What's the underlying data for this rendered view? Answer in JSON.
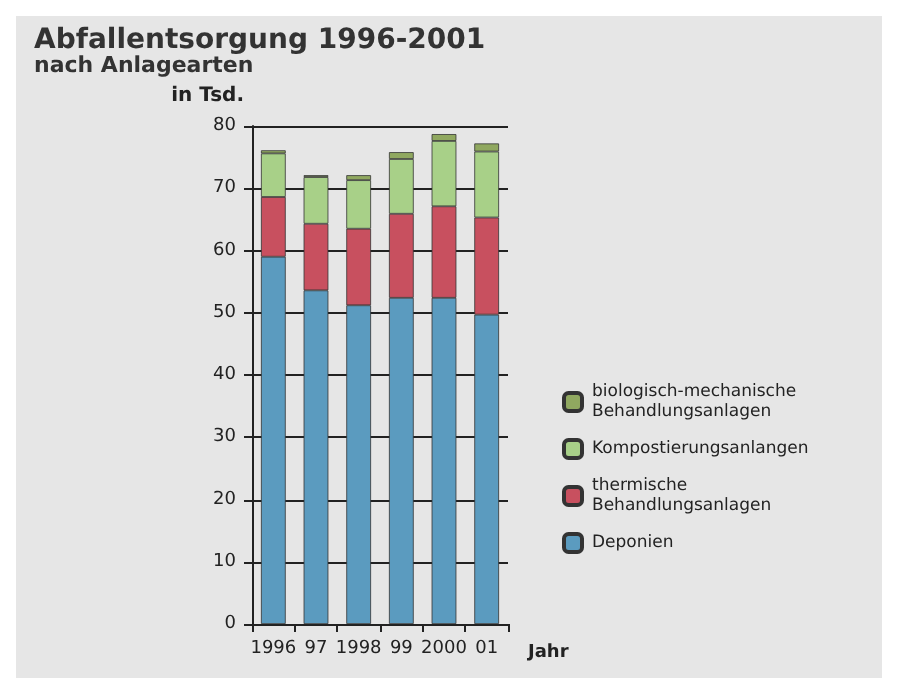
{
  "chart_data": {
    "type": "bar",
    "title": "Abfallentsorgung 1996-2001",
    "subtitle": "nach Anlagearten",
    "ylabel": "in Tsd.",
    "xlabel": "Jahr",
    "categories": [
      "1996",
      "97",
      "1998",
      "99",
      "2000",
      "01"
    ],
    "stacked": true,
    "series": [
      {
        "name": "Deponien",
        "color": "#5b9bbf",
        "values": [
          59,
          53.6,
          51.2,
          52.4,
          52.4,
          49.7
        ]
      },
      {
        "name": "thermische Behandlungsanlagen",
        "color": "#c8505f",
        "values": [
          9.6,
          10.7,
          12.3,
          13.5,
          14.7,
          15.6
        ]
      },
      {
        "name": "Kompostierungsanlangen",
        "color": "#a8d088",
        "values": [
          7,
          7.5,
          7.8,
          8.8,
          10.5,
          10.6
        ]
      },
      {
        "name": "biologisch-mechanische Behandlungsanlagen",
        "color": "#90a860",
        "values": [
          0.5,
          0.3,
          0.8,
          1.1,
          1.1,
          1.3
        ]
      }
    ],
    "ylim": [
      0,
      80
    ],
    "yticks": [
      0,
      10,
      20,
      30,
      40,
      50,
      60,
      70,
      80
    ],
    "grid": "y",
    "legend": "right"
  }
}
